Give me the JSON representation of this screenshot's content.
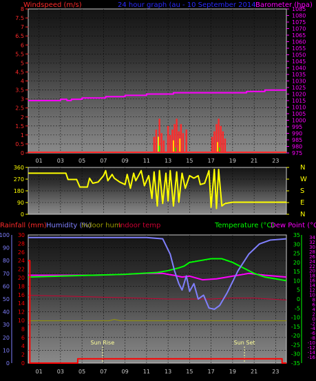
{
  "panel_top": {
    "left_title": "Windspeed (m/s)",
    "center_title": "24 hour graph (au - 10 September 2014",
    "right_title": "Barometer (hpa)",
    "left_ticks": [
      "8",
      "7.5",
      "7",
      "6.5",
      "6",
      "5.5",
      "5",
      "4.5",
      "4",
      "3.5",
      "3",
      "2.5",
      "2",
      "1.5",
      "1",
      "0.5",
      "0"
    ],
    "right_ticks": [
      "1085",
      "1080",
      "1075",
      "1070",
      "1065",
      "1060",
      "1055",
      "1050",
      "1045",
      "1040",
      "1035",
      "1030",
      "1025",
      "1020",
      "1015",
      "1010",
      "1005",
      "1000",
      "995",
      "990",
      "985",
      "980",
      "975"
    ]
  },
  "panel_mid": {
    "left_ticks": [
      "360",
      "270",
      "180",
      "90",
      "0"
    ],
    "right_ticks": [
      "N",
      "W",
      "S",
      "E",
      "N"
    ]
  },
  "panel_bot": {
    "title_rain": "Rainfall (mm)",
    "title_hum": "Humidity (%)",
    "title_inhum": "Indoor hum",
    "title_intemp": "Indoor temp",
    "title_temp": "Temperature (°C)",
    "title_dew": "Dew Point (°C)",
    "hum_ticks": [
      "100",
      "90",
      "80",
      "70",
      "60",
      "50",
      "40",
      "30",
      "20",
      "10",
      "0"
    ],
    "rain_ticks": [
      "30",
      "28",
      "26",
      "24",
      "22",
      "20",
      "18",
      "16",
      "14",
      "12",
      "10",
      "8",
      "6",
      "4",
      "2",
      "0"
    ],
    "temp_ticks": [
      "35",
      "30",
      "25",
      "20",
      "15",
      "10",
      "5",
      "0",
      "-5",
      "-10",
      "-15",
      "-20",
      "-25",
      "-30",
      "-35"
    ],
    "dew_ticks": [
      "34",
      "32",
      "30",
      "28",
      "26",
      "24",
      "22",
      "20",
      "18",
      "16",
      "14",
      "12",
      "10",
      "8",
      "6",
      "4",
      "2",
      "0",
      "-2",
      "-4",
      "-6",
      "-8",
      "-10",
      "-12",
      "-14",
      "-16"
    ],
    "sunrise_label": "Sun Rise",
    "sunset_label": "Sun Set"
  },
  "x_ticks": [
    "01",
    "03",
    "05",
    "07",
    "09",
    "11",
    "13",
    "15",
    "17",
    "19",
    "21",
    "23"
  ],
  "colors": {
    "wind": "#ff2a2a",
    "gust": "#ffff00",
    "gust_small": "#00ff00",
    "baro": "#ff00ff",
    "direction": "#ffff00",
    "rain": "#ff0000",
    "humidity": "#8080ff",
    "temperature": "#00ff00",
    "dewpoint": "#ff00ff",
    "indoor_hum": "#999900",
    "indoor_temp": "#cc0033",
    "title_center": "#2a2aff"
  },
  "chart_data": [
    {
      "type": "bar",
      "name": "Windspeed and gust",
      "x_unit": "hour",
      "ylim": [
        0,
        8
      ],
      "wind": [
        [
          11.7,
          0.9
        ],
        [
          11.9,
          1.3
        ],
        [
          12.2,
          1.9
        ],
        [
          12.4,
          1.1
        ],
        [
          12.6,
          0.7
        ],
        [
          13.0,
          1.5
        ],
        [
          13.2,
          1.0
        ],
        [
          13.4,
          1.3
        ],
        [
          13.6,
          1.6
        ],
        [
          13.8,
          1.9
        ],
        [
          14.0,
          1.2
        ],
        [
          14.2,
          1.6
        ],
        [
          14.4,
          1.1
        ],
        [
          14.7,
          1.3
        ],
        [
          17.1,
          0.9
        ],
        [
          17.3,
          1.2
        ],
        [
          17.5,
          1.6
        ],
        [
          17.7,
          1.9
        ],
        [
          17.9,
          1.5
        ],
        [
          18.1,
          1.2
        ],
        [
          18.3,
          0.8
        ]
      ],
      "gust": [
        [
          12.1,
          0.9
        ],
        [
          13.5,
          0.7
        ],
        [
          14.1,
          0.8
        ],
        [
          17.6,
          0.6
        ]
      ],
      "gust_small": [
        [
          12.2,
          0.4
        ],
        [
          13.7,
          0.3
        ],
        [
          17.8,
          0.3
        ]
      ]
    },
    {
      "type": "line",
      "name": "Barometer",
      "x_unit": "hour",
      "ylim": [
        975,
        1085
      ],
      "points": [
        [
          0,
          1015
        ],
        [
          2.5,
          1015
        ],
        [
          3.0,
          1016
        ],
        [
          3.6,
          1015
        ],
        [
          4.0,
          1016
        ],
        [
          5.0,
          1017
        ],
        [
          6.0,
          1017
        ],
        [
          7.2,
          1018
        ],
        [
          8.5,
          1018
        ],
        [
          9.0,
          1019
        ],
        [
          10.5,
          1019
        ],
        [
          11.0,
          1020
        ],
        [
          13.0,
          1020
        ],
        [
          13.5,
          1021
        ],
        [
          16.0,
          1021
        ],
        [
          17.0,
          1021
        ],
        [
          20.0,
          1021
        ],
        [
          20.3,
          1022
        ],
        [
          21.5,
          1022
        ],
        [
          22.0,
          1023
        ],
        [
          24.0,
          1023
        ]
      ]
    },
    {
      "type": "scatter",
      "name": "Wind direction",
      "x_unit": "hour",
      "ylim": [
        0,
        360
      ],
      "points": [
        [
          0,
          320
        ],
        [
          3.5,
          320
        ],
        [
          3.7,
          270
        ],
        [
          4.5,
          270
        ],
        [
          4.8,
          210
        ],
        [
          5.5,
          210
        ],
        [
          5.7,
          280
        ],
        [
          6.0,
          240
        ],
        [
          6.5,
          250
        ],
        [
          7.0,
          300
        ],
        [
          7.2,
          340
        ],
        [
          7.4,
          260
        ],
        [
          7.8,
          310
        ],
        [
          8.0,
          280
        ],
        [
          8.5,
          250
        ],
        [
          9.0,
          230
        ],
        [
          9.2,
          310
        ],
        [
          9.5,
          200
        ],
        [
          9.8,
          320
        ],
        [
          10.0,
          260
        ],
        [
          10.5,
          340
        ],
        [
          10.8,
          220
        ],
        [
          11.2,
          300
        ],
        [
          11.5,
          120
        ],
        [
          11.7,
          330
        ],
        [
          12.0,
          60
        ],
        [
          12.2,
          340
        ],
        [
          12.5,
          80
        ],
        [
          12.8,
          320
        ],
        [
          13.0,
          100
        ],
        [
          13.2,
          340
        ],
        [
          13.5,
          60
        ],
        [
          13.8,
          330
        ],
        [
          14.0,
          90
        ],
        [
          14.3,
          320
        ],
        [
          14.6,
          200
        ],
        [
          15.0,
          300
        ],
        [
          15.4,
          280
        ],
        [
          15.8,
          300
        ],
        [
          16.0,
          230
        ],
        [
          16.4,
          240
        ],
        [
          16.8,
          340
        ],
        [
          17.0,
          50
        ],
        [
          17.3,
          350
        ],
        [
          17.5,
          40
        ],
        [
          17.7,
          350
        ],
        [
          18.0,
          60
        ],
        [
          18.3,
          80
        ],
        [
          19.0,
          90
        ],
        [
          24.0,
          90
        ]
      ]
    },
    {
      "type": "line",
      "name": "Humidity",
      "x_unit": "hour",
      "ylim": [
        0,
        100
      ],
      "points": [
        [
          0,
          98
        ],
        [
          11.0,
          98
        ],
        [
          12.5,
          97
        ],
        [
          13.2,
          85
        ],
        [
          13.6,
          72
        ],
        [
          14.0,
          62
        ],
        [
          14.3,
          57
        ],
        [
          14.7,
          68
        ],
        [
          15.0,
          56
        ],
        [
          15.4,
          62
        ],
        [
          15.8,
          50
        ],
        [
          16.3,
          53
        ],
        [
          16.8,
          43
        ],
        [
          17.3,
          42
        ],
        [
          17.8,
          45
        ],
        [
          18.5,
          55
        ],
        [
          19.5,
          72
        ],
        [
          20.5,
          85
        ],
        [
          21.5,
          93
        ],
        [
          22.5,
          96
        ],
        [
          24.0,
          97
        ]
      ]
    },
    {
      "type": "line",
      "name": "Temperature",
      "x_unit": "hour",
      "ylim": [
        -35,
        35
      ],
      "points": [
        [
          0,
          12
        ],
        [
          3,
          12.5
        ],
        [
          6,
          13
        ],
        [
          9,
          13.5
        ],
        [
          12,
          14.5
        ],
        [
          13,
          15.5
        ],
        [
          14,
          17
        ],
        [
          14.5,
          18
        ],
        [
          15,
          20
        ],
        [
          16,
          21
        ],
        [
          17,
          22
        ],
        [
          18,
          22
        ],
        [
          19,
          20
        ],
        [
          20,
          17
        ],
        [
          21,
          14
        ],
        [
          22,
          12
        ],
        [
          23,
          11
        ],
        [
          24,
          10
        ]
      ]
    },
    {
      "type": "line",
      "name": "Dew point",
      "x_unit": "hour",
      "ylim": [
        -16,
        34
      ],
      "points": [
        [
          0,
          13
        ],
        [
          3,
          13
        ],
        [
          6,
          13
        ],
        [
          9,
          13.5
        ],
        [
          11,
          14
        ],
        [
          12.5,
          14
        ],
        [
          13.5,
          13
        ],
        [
          14.3,
          12
        ],
        [
          15,
          12.5
        ],
        [
          15.6,
          11.5
        ],
        [
          16.2,
          10.5
        ],
        [
          17.5,
          11
        ],
        [
          18.5,
          12
        ],
        [
          19.5,
          13
        ],
        [
          20.5,
          14
        ],
        [
          22,
          13
        ],
        [
          24,
          12
        ]
      ]
    },
    {
      "type": "line",
      "name": "Indoor temperature",
      "x_unit": "hour",
      "ylim": [
        -35,
        35
      ],
      "points": [
        [
          0,
          2
        ],
        [
          4,
          1.5
        ],
        [
          7,
          1
        ],
        [
          10,
          0.5
        ],
        [
          13,
          0
        ],
        [
          17,
          0
        ],
        [
          19,
          0.5
        ],
        [
          21,
          0.5
        ],
        [
          24,
          -0.5
        ]
      ]
    },
    {
      "type": "line",
      "name": "Indoor humidity",
      "x_unit": "hour",
      "ylim": [
        0,
        100
      ],
      "points": [
        [
          0,
          33
        ],
        [
          7.5,
          33
        ],
        [
          8,
          34
        ],
        [
          8.6,
          33
        ],
        [
          24,
          33
        ]
      ]
    },
    {
      "type": "line",
      "name": "Rainfall",
      "x_unit": "hour",
      "ylim": [
        0,
        30
      ],
      "points": [
        [
          0,
          24
        ],
        [
          0.1,
          24
        ],
        [
          0.15,
          0
        ],
        [
          4.5,
          0
        ],
        [
          4.6,
          1
        ],
        [
          23.5,
          1
        ],
        [
          23.6,
          0
        ],
        [
          24,
          0
        ]
      ]
    }
  ],
  "sun": {
    "rise": 6.9,
    "set": 20.1
  }
}
